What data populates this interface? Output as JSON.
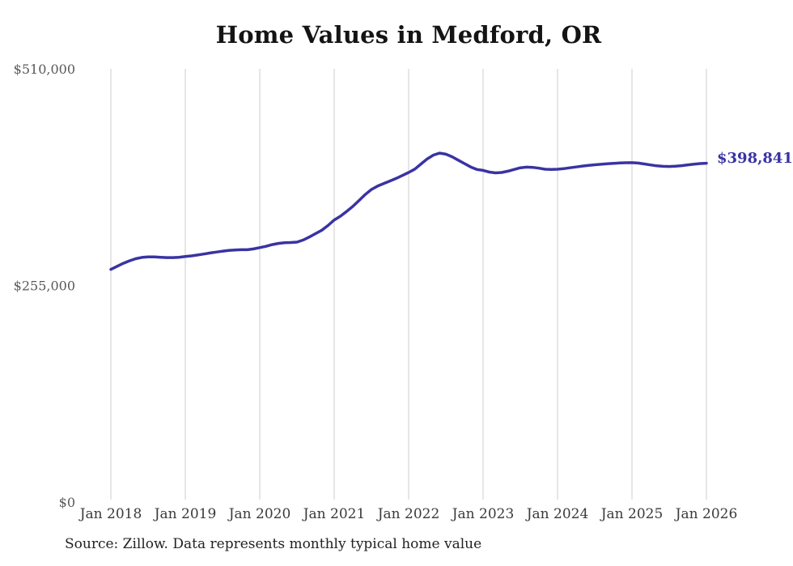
{
  "page": {
    "source_note": "Source: Zillow. Data represents monthly typical home value"
  },
  "chart_data": {
    "type": "line",
    "title": "Home Values in Medford, OR",
    "series_name": "Monthly typical home value (USD)",
    "x_tick_labels": [
      "Jan 2018",
      "Jan 2019",
      "Jan 2020",
      "Jan 2021",
      "Jan 2022",
      "Jan 2023",
      "Jan 2024",
      "Jan 2025",
      "Jan 2026"
    ],
    "points_per_year": 12,
    "values": [
      273900,
      277500,
      281000,
      284000,
      286500,
      288000,
      288600,
      288600,
      288200,
      287800,
      287800,
      288200,
      289000,
      289800,
      290800,
      292000,
      293200,
      294300,
      295300,
      296200,
      296800,
      297000,
      297000,
      298000,
      299500,
      301000,
      303000,
      304500,
      305300,
      305500,
      306000,
      308500,
      312000,
      316000,
      320000,
      325500,
      332000,
      336500,
      342000,
      348000,
      355000,
      362000,
      368000,
      372000,
      375000,
      378000,
      381000,
      384500,
      388000,
      392000,
      398000,
      404000,
      408500,
      410800,
      409500,
      406500,
      402500,
      398500,
      394500,
      391500,
      390500,
      388500,
      387500,
      388000,
      389500,
      391500,
      393500,
      394300,
      394000,
      393000,
      391800,
      391500,
      391800,
      392500,
      393500,
      394500,
      395500,
      396300,
      397000,
      397600,
      398200,
      398700,
      399100,
      399400,
      399500,
      399000,
      398000,
      396800,
      395800,
      395200,
      395000,
      395300,
      396000,
      396900,
      397800,
      398500,
      398841
    ],
    "end_label": "$398,841",
    "y_ticks": [
      {
        "value": 0,
        "label": "$0"
      },
      {
        "value": 255000,
        "label": "$255,000"
      },
      {
        "value": 510000,
        "label": "$510,000"
      }
    ],
    "ylim": [
      0,
      510000
    ],
    "grid": "vertical-only",
    "legend": "none",
    "line_color": "#3a33a3",
    "accent_color": "#3a33a3",
    "grid_color": "#cccccc",
    "x_label_color": "#3a3a3a",
    "y_label_color": "#595959"
  }
}
